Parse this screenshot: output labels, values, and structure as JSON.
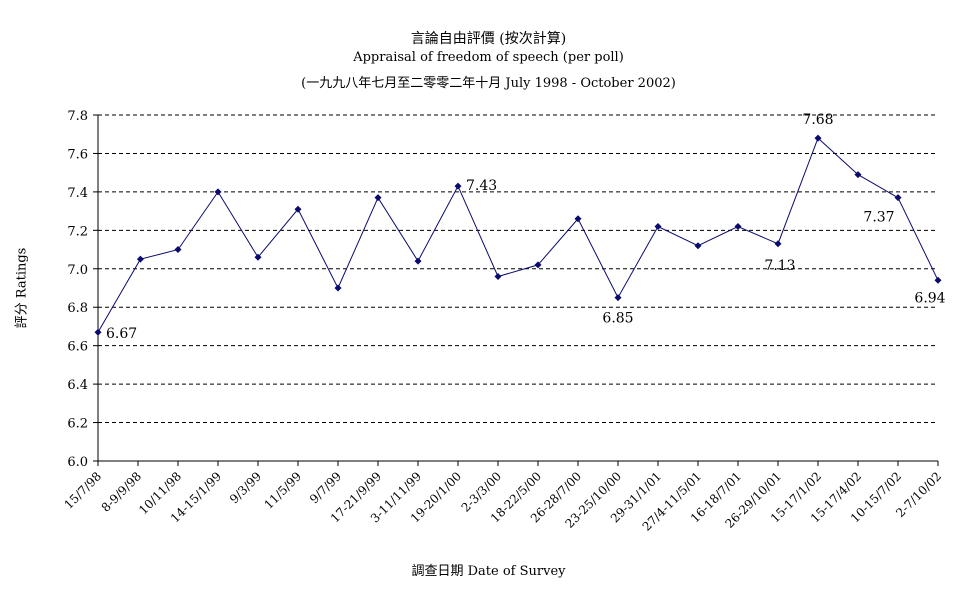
{
  "chart_data": {
    "type": "line",
    "title": "言論自由評價 (按次計算)",
    "subtitle": "Appraisal of freedom of speech (per poll)",
    "subtitle2": "(一九九八年七月至二零零二年十月 July 1998 - October 2002)",
    "xlabel": "調查日期 Date of Survey",
    "ylabel": "評分 Ratings",
    "ylim": [
      6.0,
      7.8
    ],
    "y_ticks": [
      "6.0",
      "6.2",
      "6.4",
      "6.6",
      "6.8",
      "7.0",
      "7.2",
      "7.4",
      "7.6",
      "7.8"
    ],
    "grid": "horizontal dashed",
    "categories": [
      "15/7/98",
      "8-9/9/98",
      "10/11/98",
      "14-15/1/99",
      "9/3/99",
      "11/5/99",
      "9/7/99",
      "17-21/9/99",
      "3-11/11/99",
      "19-20/1/00",
      "2-3/3/00",
      "18-22/5/00",
      "26-28/7/00",
      "23-25/10/00",
      "29-31/1/01",
      "27/4-11/5/01",
      "16-18/7/01",
      "26-29/10/01",
      "15-17/1/02",
      "15-17/4/02",
      "10-15/7/02",
      "2-7/10/02"
    ],
    "x_values": [
      0,
      1,
      2,
      3,
      4,
      5,
      6,
      7,
      8,
      9,
      10,
      11,
      12,
      13,
      14,
      15,
      16,
      17,
      18,
      19,
      20,
      21
    ],
    "series": [
      {
        "x": [
          0,
          1.06,
          2,
          3,
          4,
          5,
          6,
          7,
          8,
          9,
          10,
          11,
          12,
          13,
          14,
          15,
          16,
          17,
          18,
          19,
          20,
          21
        ],
        "values": [
          6.67,
          7.05,
          7.1,
          7.4,
          7.06,
          7.31,
          6.9,
          7.37,
          7.04,
          7.43,
          6.96,
          7.02,
          7.26,
          6.85,
          7.22,
          7.12,
          7.22,
          7.13,
          7.68,
          7.49,
          7.37,
          6.94
        ],
        "color": "#0a0a6e"
      }
    ],
    "data_labels": [
      {
        "index": 0,
        "text": "6.67"
      },
      {
        "index": 9,
        "text": "7.43"
      },
      {
        "index": 13,
        "text": "6.85"
      },
      {
        "index": 17,
        "text": "7.13"
      },
      {
        "index": 18,
        "text": "7.68"
      },
      {
        "index": 20,
        "text": "7.37"
      },
      {
        "index": 21,
        "text": "6.94"
      }
    ]
  }
}
